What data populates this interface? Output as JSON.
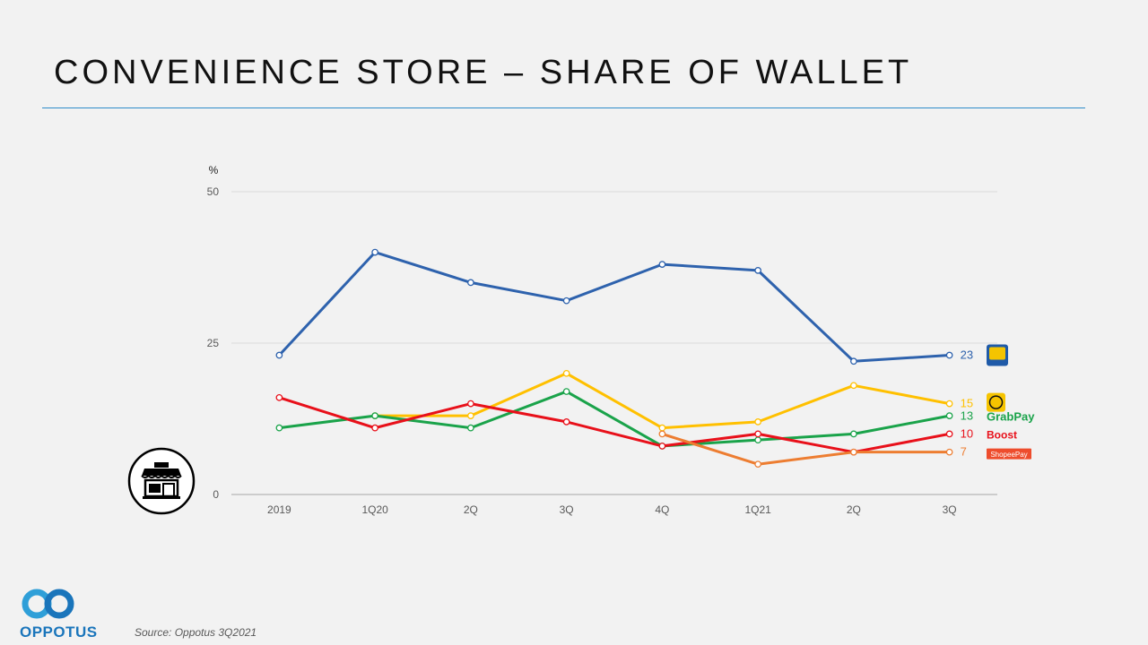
{
  "title": "CONVENIENCE STORE – SHARE OF WALLET",
  "source": "Source: Oppotus 3Q2021",
  "logo": {
    "text": "OPPOTUS"
  },
  "icons": {
    "shop": "shop-icon",
    "logo": "oppotus-logo-icon"
  },
  "chart_data": {
    "type": "line",
    "title": "CONVENIENCE STORE – SHARE OF WALLET",
    "ylabel": "%",
    "xlabel": "",
    "ylim": [
      0,
      50
    ],
    "yticks": [
      0,
      25,
      50
    ],
    "grid": true,
    "categories": [
      "2019",
      "1Q20",
      "2Q",
      "3Q",
      "4Q",
      "1Q21",
      "2Q",
      "3Q"
    ],
    "series": [
      {
        "name": "Touch 'n Go eWallet",
        "color": "#2e62ad",
        "values": [
          23,
          40,
          35,
          32,
          38,
          37,
          22,
          23
        ],
        "end_label": "23",
        "brand_label": "Touch 'n Go eWallet"
      },
      {
        "name": "Maybank",
        "color": "#ffc000",
        "values": [
          null,
          13,
          13,
          20,
          11,
          12,
          18,
          15
        ],
        "end_label": "15",
        "brand_label": ""
      },
      {
        "name": "GrabPay",
        "color": "#1aa34a",
        "values": [
          11,
          13,
          11,
          17,
          8,
          9,
          10,
          13
        ],
        "end_label": "13",
        "brand_label": "GrabPay"
      },
      {
        "name": "Boost",
        "color": "#e8101a",
        "values": [
          16,
          11,
          15,
          12,
          8,
          10,
          7,
          10
        ],
        "end_label": "10",
        "brand_label": "Boost"
      },
      {
        "name": "ShopeePay",
        "color": "#ed7d31",
        "values": [
          null,
          null,
          null,
          null,
          10,
          5,
          7,
          7
        ],
        "end_label": "7",
        "brand_label": "ShopeePay"
      }
    ]
  }
}
